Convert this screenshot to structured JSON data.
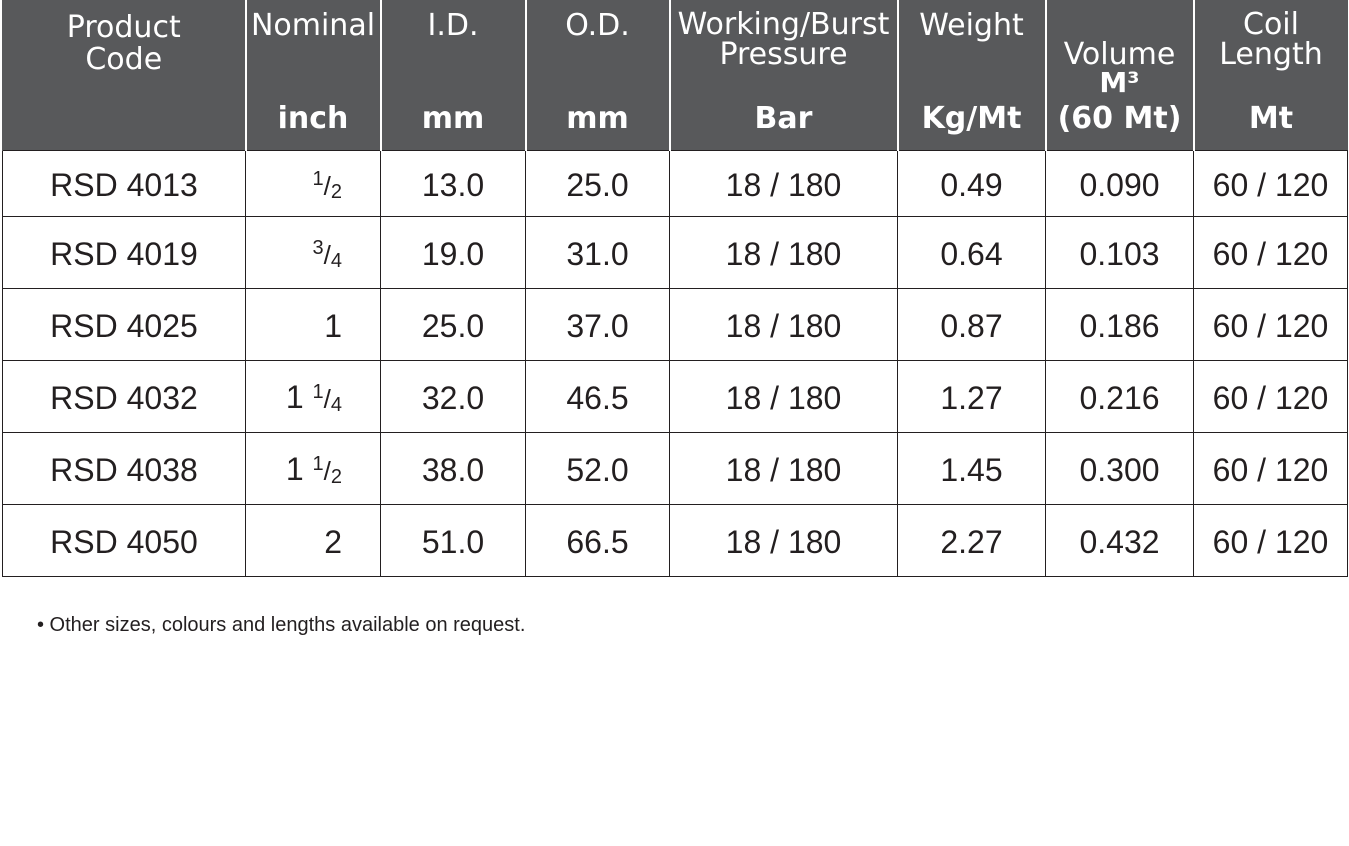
{
  "headers": [
    {
      "title": "Product\nCode",
      "unit": ""
    },
    {
      "title": "Nominal",
      "unit": "inch"
    },
    {
      "title": "I.D.",
      "unit": "mm"
    },
    {
      "title": "O.D.",
      "unit": "mm"
    },
    {
      "title": "Working/Burst\nPressure",
      "unit": "Bar"
    },
    {
      "title": "Weight",
      "unit": "Kg/Mt"
    },
    {
      "title": "Volume",
      "sub": "M³",
      "unit": "(60 Mt)"
    },
    {
      "title": "Coil\nLength",
      "unit": "Mt"
    }
  ],
  "rows": [
    {
      "code": "RSD 4013",
      "nominal_whole": "",
      "nominal_num": "1",
      "nominal_den": "2",
      "id": "13.0",
      "od": "25.0",
      "pressure": "18 / 180",
      "weight": "0.49",
      "volume": "0.090",
      "coil": "60 / 120"
    },
    {
      "code": "RSD 4019",
      "nominal_whole": "",
      "nominal_num": "3",
      "nominal_den": "4",
      "id": "19.0",
      "od": "31.0",
      "pressure": "18 / 180",
      "weight": "0.64",
      "volume": "0.103",
      "coil": "60 / 120"
    },
    {
      "code": "RSD 4025",
      "nominal_whole": "1",
      "nominal_num": "",
      "nominal_den": "",
      "id": "25.0",
      "od": "37.0",
      "pressure": "18 / 180",
      "weight": "0.87",
      "volume": "0.186",
      "coil": "60 / 120"
    },
    {
      "code": "RSD 4032",
      "nominal_whole": "1",
      "nominal_num": "1",
      "nominal_den": "4",
      "id": "32.0",
      "od": "46.5",
      "pressure": "18 / 180",
      "weight": "1.27",
      "volume": "0.216",
      "coil": "60 / 120"
    },
    {
      "code": "RSD 4038",
      "nominal_whole": "1",
      "nominal_num": "1",
      "nominal_den": "2",
      "id": "38.0",
      "od": "52.0",
      "pressure": "18 / 180",
      "weight": "1.45",
      "volume": "0.300",
      "coil": "60 / 120"
    },
    {
      "code": "RSD 4050",
      "nominal_whole": "2",
      "nominal_num": "",
      "nominal_den": "",
      "id": "51.0",
      "od": "66.5",
      "pressure": "18 / 180",
      "weight": "2.27",
      "volume": "0.432",
      "coil": "60 / 120"
    }
  ],
  "note": "• Other sizes, colours and lengths available on request."
}
